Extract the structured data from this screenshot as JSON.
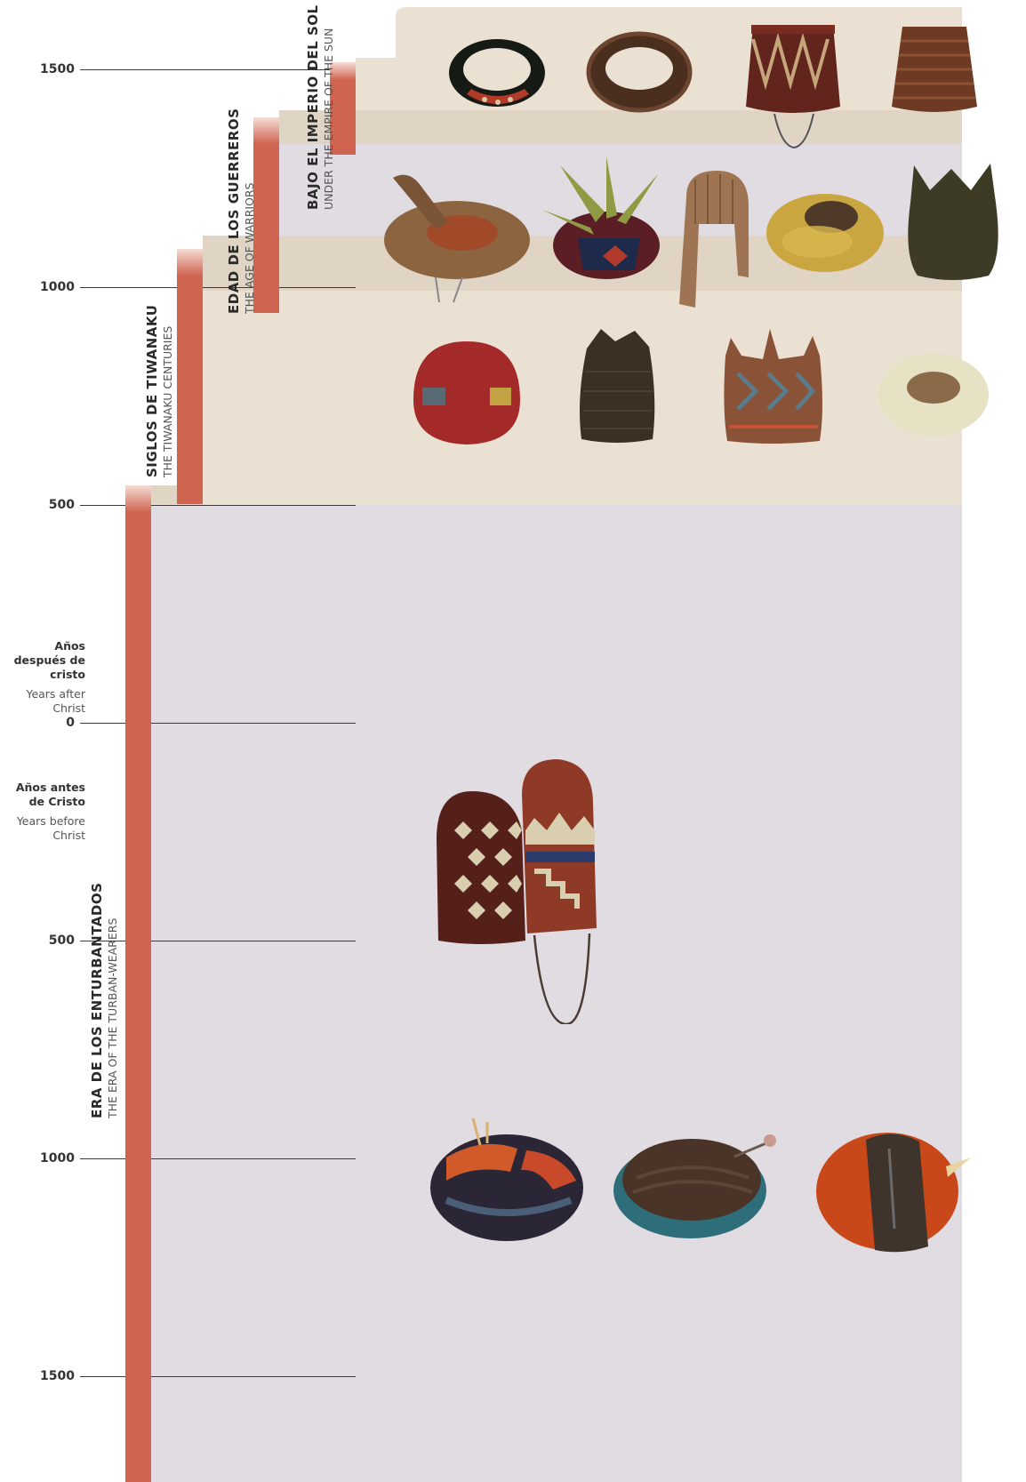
{
  "timeline": {
    "ticks": [
      {
        "label": "1500",
        "era": "AD"
      },
      {
        "label": "1000",
        "era": "AD"
      },
      {
        "label": "500",
        "era": "AD"
      },
      {
        "label": "0",
        "era": "zero"
      },
      {
        "label": "500",
        "era": "BC"
      },
      {
        "label": "1000",
        "era": "BC"
      },
      {
        "label": "1500",
        "era": "BC"
      }
    ],
    "after_christ": {
      "es": "Años después de cristo",
      "en": "Years after Christ"
    },
    "before_christ": {
      "es": "Años antes de Cristo",
      "en": "Years before Christ"
    }
  },
  "eras": [
    {
      "id": "turbantados",
      "es": "ERA DE LOS ENTURBANTADOS",
      "en": "THE ERA OF THE TURBAN-WEARERS"
    },
    {
      "id": "tiwanaku",
      "es": "SIGLOS DE TIWANAKU",
      "en": "THE TIWANAKU CENTURIES"
    },
    {
      "id": "guerreros",
      "es": "EDAD DE LOS GUERREROS",
      "en": "THE AGE OF WARRIORS"
    },
    {
      "id": "imperio",
      "es": "BAJO EL IMPERIO DEL SOL",
      "en": "UNDER THE EMPIRE OF THE SUN"
    }
  ],
  "colors": {
    "era_bar": "#cf6450",
    "band_lavender": "#e0dce1",
    "band_beige": "#ebe1d2",
    "band_overlap": "#e0d4c5"
  },
  "hats": [
    {
      "name": "beaded-necklace-headband"
    },
    {
      "name": "ring-headband"
    },
    {
      "name": "patterned-fez-with-cord"
    },
    {
      "name": "striped-fez"
    },
    {
      "name": "wide-brim-straw-hat"
    },
    {
      "name": "feathered-cap"
    },
    {
      "name": "hood-with-flaps"
    },
    {
      "name": "yellow-fleece-cap"
    },
    {
      "name": "four-corner-knit-hat"
    },
    {
      "name": "red-pile-cap"
    },
    {
      "name": "dark-woven-hat"
    },
    {
      "name": "four-point-tapestry-hat"
    },
    {
      "name": "white-fleece-ring"
    },
    {
      "name": "stepped-pattern-knit-caps"
    },
    {
      "name": "multicolor-turban"
    },
    {
      "name": "brown-turban-with-pin"
    },
    {
      "name": "orange-turban"
    }
  ]
}
